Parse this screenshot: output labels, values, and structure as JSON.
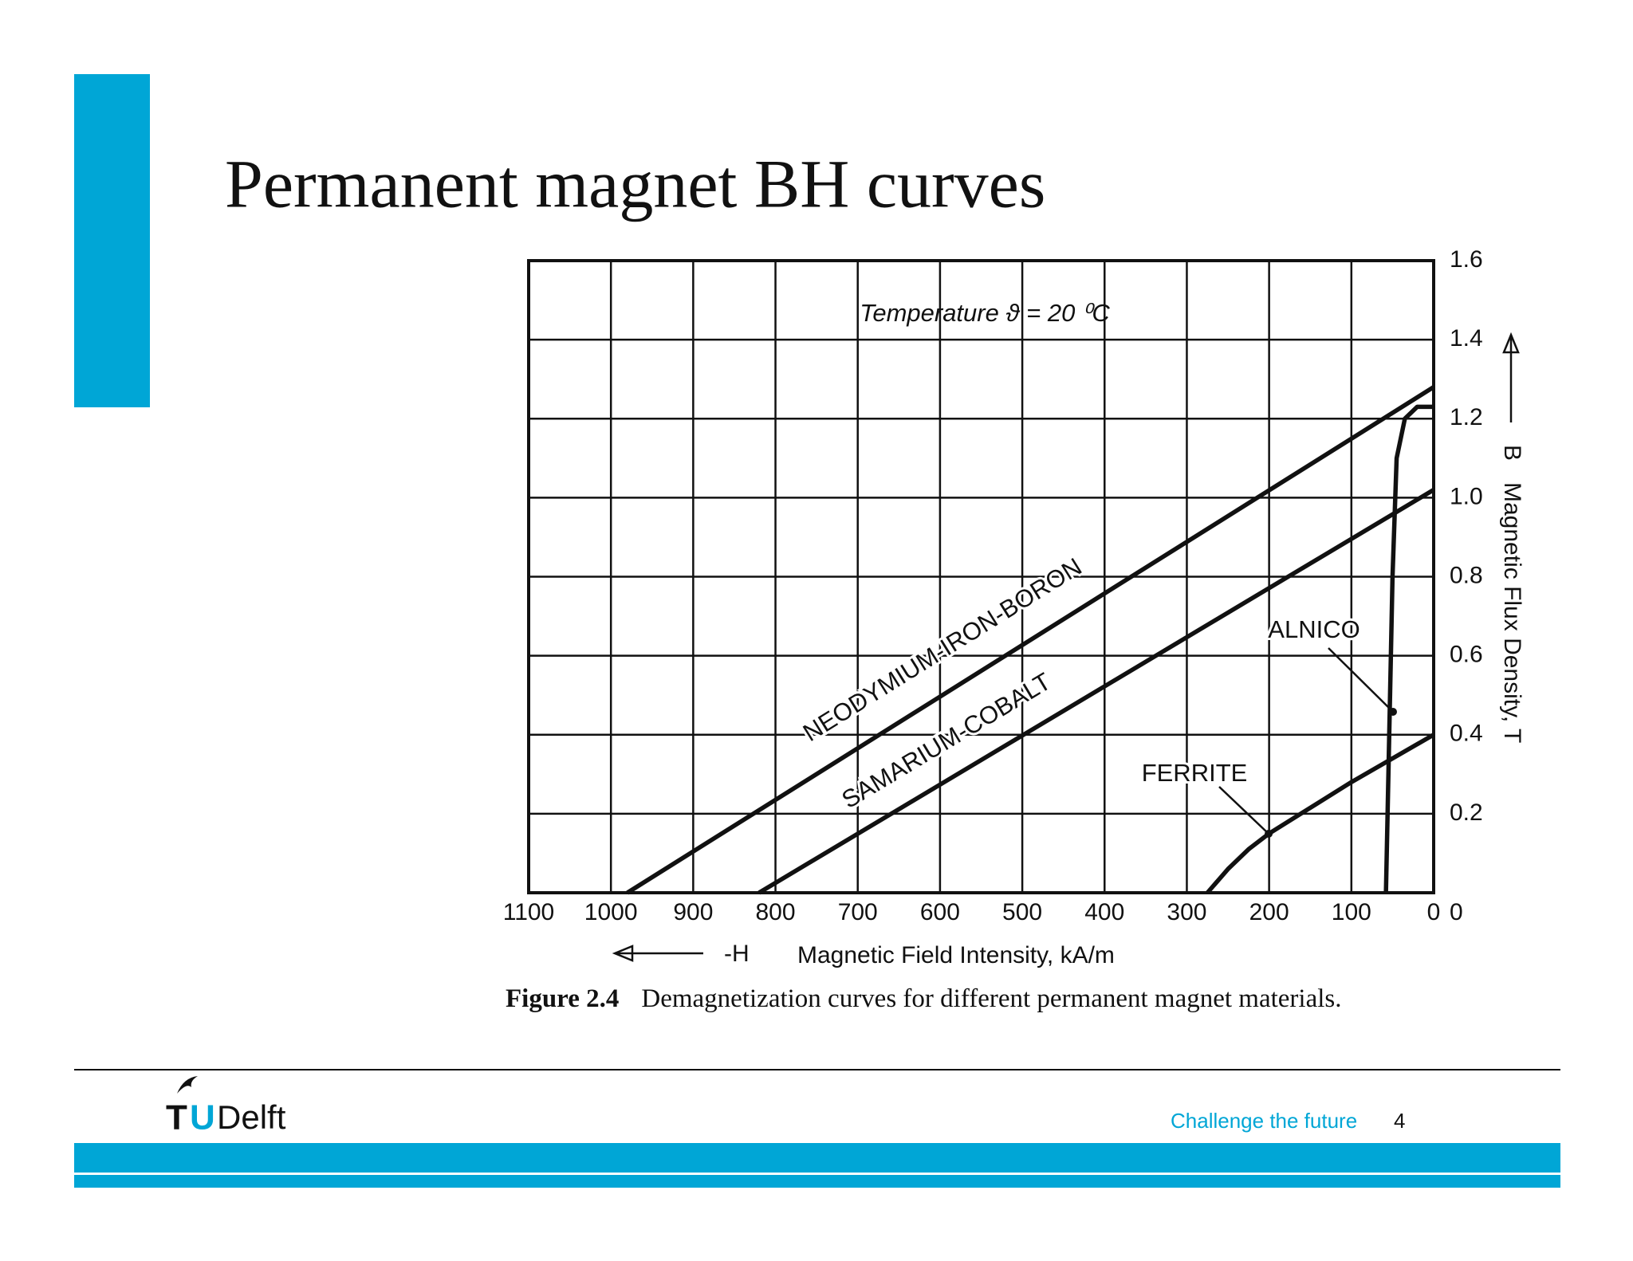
{
  "slide": {
    "title": "Permanent magnet BH curves",
    "caption_label": "Figure 2.4",
    "caption_text": "Demagnetization curves for different permanent magnet materials.",
    "footer_text": "Challenge the future",
    "page_number": "4",
    "logo_parts": [
      "T",
      "U",
      "Delft"
    ]
  },
  "chart_data": {
    "type": "line",
    "annotation": "Temperature ϑ = 20 ⁰C",
    "xlabel_symbol": "-H",
    "xlabel": "Magnetic Field Intensity, kA/m",
    "ylabel_symbol": "B",
    "ylabel": "Magnetic Flux Density, T",
    "xlim": [
      1100,
      0
    ],
    "ylim": [
      0,
      1.6
    ],
    "xticks": [
      1100,
      1000,
      900,
      800,
      700,
      600,
      500,
      400,
      300,
      200,
      100,
      0
    ],
    "yticks": [
      0,
      0.2,
      0.4,
      0.6,
      0.8,
      {
        "value": 1,
        "label": "1.0"
      },
      1.2,
      1.4,
      1.6
    ],
    "grid": true,
    "series": [
      {
        "name": "NEODYMIUM-IRON-BORON",
        "color": "#111111",
        "x": [
          980,
          0
        ],
        "values": [
          0,
          1.28
        ]
      },
      {
        "name": "SAMARIUM-COBALT",
        "color": "#111111",
        "x": [
          820,
          0
        ],
        "values": [
          0,
          1.02
        ]
      },
      {
        "name": "FERRITE",
        "color": "#111111",
        "x": [
          275,
          250,
          225,
          200,
          100,
          0
        ],
        "values": [
          0,
          0.06,
          0.11,
          0.15,
          0.28,
          0.4
        ]
      },
      {
        "name": "ALNICO",
        "color": "#111111",
        "x": [
          58,
          50,
          45,
          35,
          20,
          0
        ],
        "values": [
          0,
          0.8,
          1.1,
          1.2,
          1.23,
          1.23
        ]
      }
    ]
  }
}
